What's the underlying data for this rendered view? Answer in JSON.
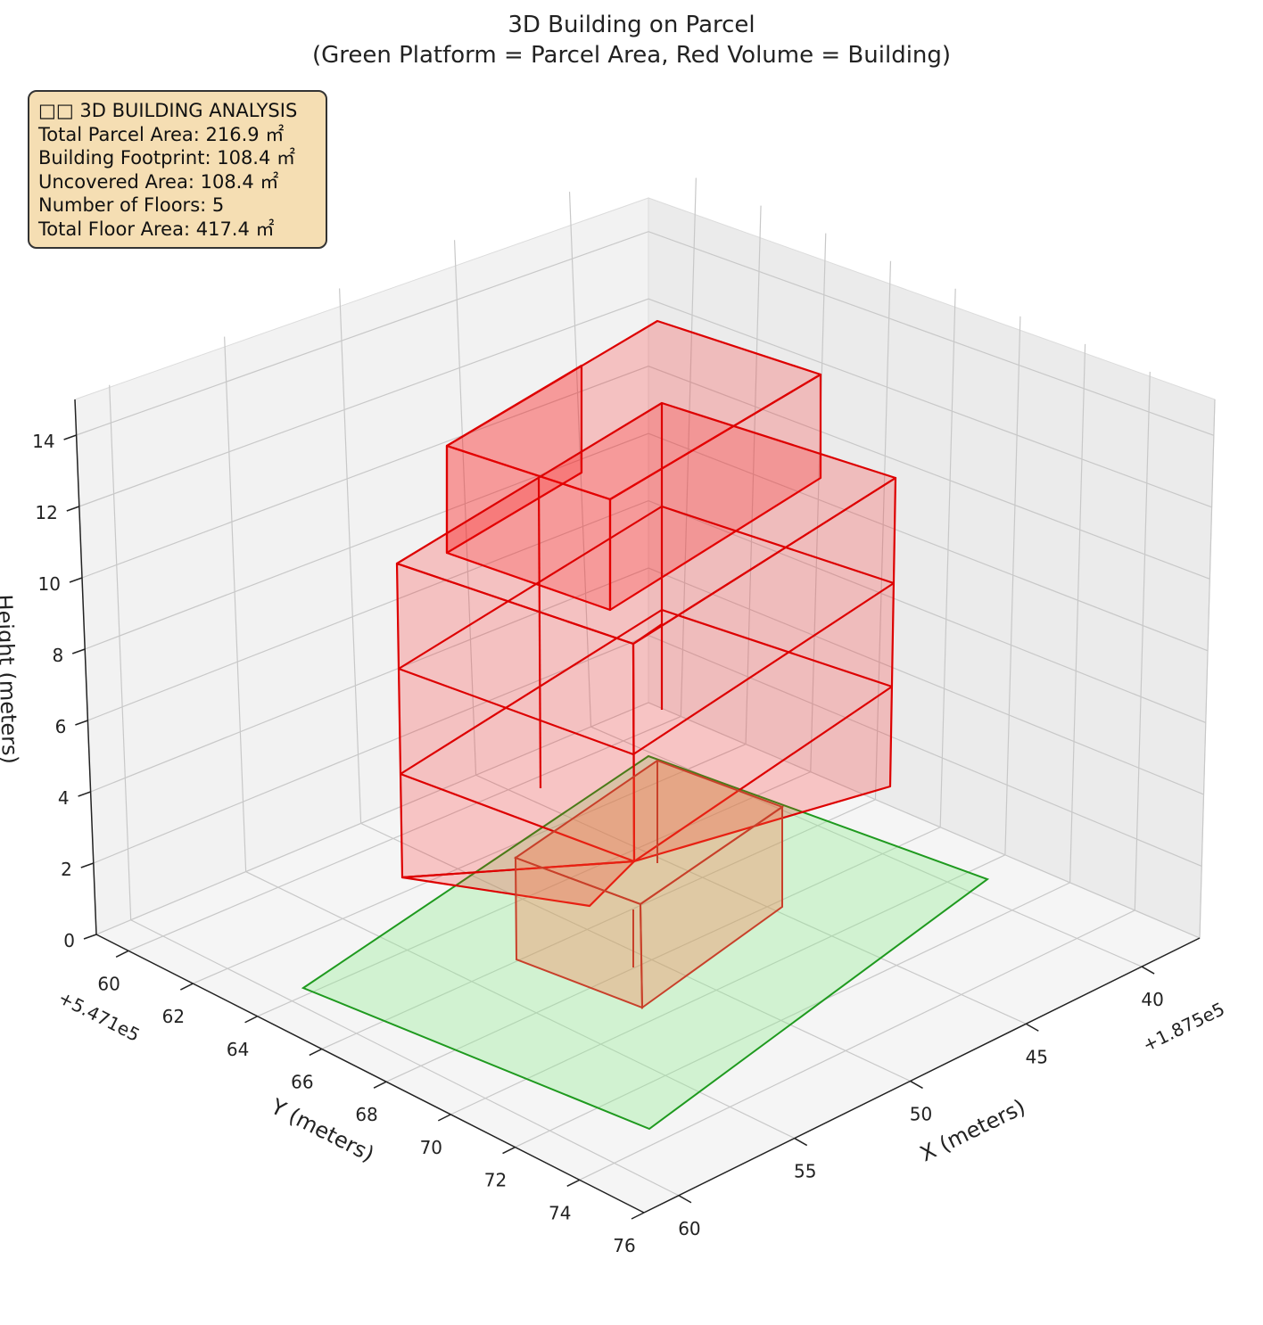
{
  "chart_data": {
    "type": "3d",
    "title_line1": "3D Building on Parcel",
    "title_line2": "(Green Platform = Parcel Area, Red Volume = Building)",
    "xlabel": "X (meters)",
    "ylabel": "Y (meters)",
    "zlabel": "Height (meters)",
    "x_offset": "+1.875e5",
    "y_offset": "+5.471e5",
    "x_ticks": [
      "40",
      "45",
      "50",
      "55",
      "60"
    ],
    "y_ticks": [
      "60",
      "62",
      "64",
      "66",
      "68",
      "70",
      "72",
      "74",
      "76"
    ],
    "z_ticks": [
      "0",
      "2",
      "4",
      "6",
      "8",
      "10",
      "12",
      "14"
    ],
    "grid": true,
    "parcel_color": "#90ee90",
    "building_color": "#ff0000",
    "info_box": {
      "header": "□□ 3D BUILDING ANALYSIS",
      "lines": [
        "Total Parcel Area: 216.9 ㎡",
        "Building Footprint: 108.4 ㎡",
        "Uncovered Area: 108.4 ㎡",
        "Number of Floors: 5",
        "Total Floor Area: 417.4 ㎡"
      ]
    }
  }
}
